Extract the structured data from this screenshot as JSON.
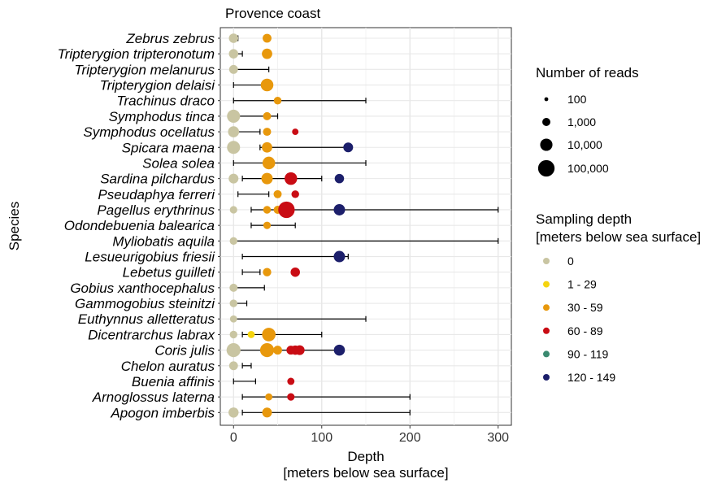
{
  "chart_data": {
    "type": "scatter",
    "title": "Provence coast",
    "xlabel": "Depth",
    "xlabel_sub": "[meters below sea surface]",
    "ylabel": "Species",
    "xlim": [
      -15,
      315
    ],
    "x_ticks": [
      0,
      100,
      200,
      300
    ],
    "grid": true,
    "species": [
      {
        "name": "Zebrus zebrus",
        "range": [
          0,
          5
        ],
        "points": [
          {
            "depth": 0,
            "reads": 2000,
            "group": "0"
          },
          {
            "depth": 38,
            "reads": 1500,
            "group": "30 - 59"
          }
        ]
      },
      {
        "name": "Tripterygion tripteronotum",
        "range": [
          0,
          10
        ],
        "points": [
          {
            "depth": 0,
            "reads": 2000,
            "group": "0"
          },
          {
            "depth": 38,
            "reads": 3500,
            "group": "30 - 59"
          }
        ]
      },
      {
        "name": "Tripterygion melanurus",
        "range": [
          0,
          40
        ],
        "points": [
          {
            "depth": 0,
            "reads": 1500,
            "group": "0"
          }
        ]
      },
      {
        "name": "Tripterygion delaisi",
        "range": [
          0,
          38
        ],
        "points": [
          {
            "depth": 38,
            "reads": 12000,
            "group": "30 - 59"
          }
        ]
      },
      {
        "name": "Trachinus draco",
        "range": [
          0,
          150
        ],
        "points": [
          {
            "depth": 50,
            "reads": 800,
            "group": "30 - 59"
          }
        ]
      },
      {
        "name": "Symphodus tinca",
        "range": [
          0,
          50
        ],
        "points": [
          {
            "depth": 0,
            "reads": 15000,
            "group": "0"
          },
          {
            "depth": 38,
            "reads": 1000,
            "group": "30 - 59"
          }
        ]
      },
      {
        "name": "Symphodus ocellatus",
        "range": [
          0,
          30
        ],
        "points": [
          {
            "depth": 0,
            "reads": 5000,
            "group": "0"
          },
          {
            "depth": 38,
            "reads": 1000,
            "group": "30 - 59"
          },
          {
            "depth": 70,
            "reads": 400,
            "group": "60 - 89"
          }
        ]
      },
      {
        "name": "Spicara maena",
        "range": [
          30,
          130
        ],
        "points": [
          {
            "depth": 0,
            "reads": 15000,
            "group": "0"
          },
          {
            "depth": 38,
            "reads": 3500,
            "group": "30 - 59"
          },
          {
            "depth": 130,
            "reads": 2500,
            "group": "120 - 149"
          }
        ]
      },
      {
        "name": "Solea solea",
        "range": [
          0,
          150
        ],
        "points": [
          {
            "depth": 40,
            "reads": 12000,
            "group": "30 - 59"
          }
        ]
      },
      {
        "name": "Sardina pilchardus",
        "range": [
          10,
          100
        ],
        "points": [
          {
            "depth": 0,
            "reads": 2500,
            "group": "0"
          },
          {
            "depth": 38,
            "reads": 6000,
            "group": "30 - 59"
          },
          {
            "depth": 65,
            "reads": 12000,
            "group": "60 - 89"
          },
          {
            "depth": 120,
            "reads": 2000,
            "group": "120 - 149"
          }
        ]
      },
      {
        "name": "Pseudaphya ferreri",
        "range": [
          5,
          40
        ],
        "points": [
          {
            "depth": 50,
            "reads": 1000,
            "group": "30 - 59"
          },
          {
            "depth": 70,
            "reads": 800,
            "group": "60 - 89"
          }
        ]
      },
      {
        "name": "Pagellus erythrinus",
        "range": [
          20,
          300
        ],
        "points": [
          {
            "depth": 0,
            "reads": 700,
            "group": "0"
          },
          {
            "depth": 38,
            "reads": 800,
            "group": "30 - 59"
          },
          {
            "depth": 50,
            "reads": 1000,
            "group": "30 - 59"
          },
          {
            "depth": 60,
            "reads": 100000,
            "group": "60 - 89"
          },
          {
            "depth": 120,
            "reads": 6000,
            "group": "120 - 149"
          }
        ]
      },
      {
        "name": "Odondebuenia balearica",
        "range": [
          20,
          70
        ],
        "points": [
          {
            "depth": 38,
            "reads": 700,
            "group": "30 - 59"
          }
        ]
      },
      {
        "name": "Myliobatis aquila",
        "range": [
          0,
          300
        ],
        "points": [
          {
            "depth": 0,
            "reads": 800,
            "group": "0"
          }
        ]
      },
      {
        "name": "Lesueurigobius friesii",
        "range": [
          10,
          130
        ],
        "points": [
          {
            "depth": 120,
            "reads": 6000,
            "group": "120 - 149"
          }
        ]
      },
      {
        "name": "Lebetus guilleti",
        "range": [
          10,
          30
        ],
        "points": [
          {
            "depth": 38,
            "reads": 1200,
            "group": "30 - 59"
          },
          {
            "depth": 70,
            "reads": 2000,
            "group": "60 - 89"
          }
        ]
      },
      {
        "name": "Gobius xanthocephalus",
        "range": [
          0,
          35
        ],
        "points": [
          {
            "depth": 0,
            "reads": 1000,
            "group": "0"
          }
        ]
      },
      {
        "name": "Gammogobius steinitzi",
        "range": [
          0,
          15
        ],
        "points": [
          {
            "depth": 0,
            "reads": 800,
            "group": "0"
          }
        ]
      },
      {
        "name": "Euthynnus alletteratus",
        "range": [
          0,
          150
        ],
        "points": [
          {
            "depth": 0,
            "reads": 600,
            "group": "0"
          }
        ]
      },
      {
        "name": "Dicentrarchus labrax",
        "range": [
          10,
          100
        ],
        "points": [
          {
            "depth": 0,
            "reads": 800,
            "group": "0"
          },
          {
            "depth": 20,
            "reads": 600,
            "group": "1 - 29"
          },
          {
            "depth": 40,
            "reads": 20000,
            "group": "30 - 59"
          }
        ]
      },
      {
        "name": "Coris julis",
        "range": [
          0,
          120
        ],
        "points": [
          {
            "depth": 0,
            "reads": 25000,
            "group": "0"
          },
          {
            "depth": 38,
            "reads": 25000,
            "group": "30 - 59"
          },
          {
            "depth": 50,
            "reads": 1500,
            "group": "30 - 59"
          },
          {
            "depth": 65,
            "reads": 1500,
            "group": "60 - 89"
          },
          {
            "depth": 70,
            "reads": 2000,
            "group": "60 - 89"
          },
          {
            "depth": 75,
            "reads": 2500,
            "group": "60 - 89"
          },
          {
            "depth": 120,
            "reads": 5000,
            "group": "120 - 149"
          }
        ]
      },
      {
        "name": "Chelon auratus",
        "range": [
          10,
          20
        ],
        "points": [
          {
            "depth": 0,
            "reads": 1500,
            "group": "0"
          }
        ]
      },
      {
        "name": "Buenia affinis",
        "range": [
          0,
          25
        ],
        "points": [
          {
            "depth": 65,
            "reads": 600,
            "group": "60 - 89"
          }
        ]
      },
      {
        "name": "Arnoglossus laterna",
        "range": [
          10,
          200
        ],
        "points": [
          {
            "depth": 40,
            "reads": 600,
            "group": "30 - 59"
          },
          {
            "depth": 65,
            "reads": 700,
            "group": "60 - 89"
          }
        ]
      },
      {
        "name": "Apogon imberbis",
        "range": [
          10,
          200
        ],
        "points": [
          {
            "depth": 0,
            "reads": 3000,
            "group": "0"
          },
          {
            "depth": 38,
            "reads": 2500,
            "group": "30 - 59"
          }
        ]
      }
    ],
    "legend_size": {
      "title": "Number of reads",
      "entries": [
        {
          "label": "100",
          "reads": 100
        },
        {
          "label": "1,000",
          "reads": 1000
        },
        {
          "label": "10,000",
          "reads": 10000
        },
        {
          "label": "100,000",
          "reads": 100000
        }
      ]
    },
    "legend_color": {
      "title_line1": "Sampling depth",
      "title_line2": "[meters below sea surface]",
      "entries": [
        {
          "label": "0",
          "color": "#c9c5a2"
        },
        {
          "label": "1 - 29",
          "color": "#f5d40f"
        },
        {
          "label": "30 - 59",
          "color": "#e8980c"
        },
        {
          "label": "60 - 89",
          "color": "#c90c14"
        },
        {
          "label": "90 - 119",
          "color": "#3a8a70"
        },
        {
          "label": "120 - 149",
          "color": "#1c1f6b"
        }
      ]
    },
    "legend_placement": "right"
  }
}
